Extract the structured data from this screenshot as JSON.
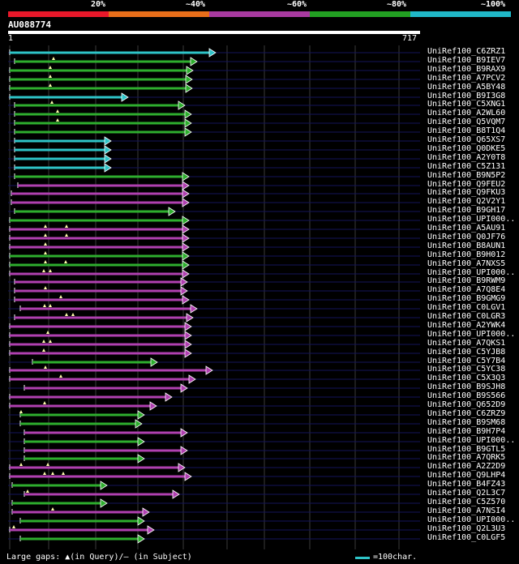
{
  "legend": {
    "labels": [
      "20%",
      "~40%",
      "~60%",
      "~80%",
      "~100%"
    ],
    "colors": [
      "#e8182a",
      "#e86e1a",
      "#a83aa0",
      "#22a022",
      "#20b8c8"
    ]
  },
  "query": {
    "id": "AU088774",
    "start": "1",
    "end": "717"
  },
  "hits": [
    {
      "label": "UniRef100_C6ZRZ1",
      "color": "cyan",
      "start": 12,
      "end": 266,
      "gaps": []
    },
    {
      "label": "UniRef100_B9IEV7",
      "color": "green",
      "start": 18,
      "end": 243,
      "gaps": [
        66
      ]
    },
    {
      "label": "UniRef100_B9RAX9",
      "color": "green",
      "start": 12,
      "end": 238,
      "gaps": [
        62
      ]
    },
    {
      "label": "UniRef100_A7PCV2",
      "color": "green",
      "start": 12,
      "end": 237,
      "gaps": [
        62
      ]
    },
    {
      "label": "UniRef100_A5BY48",
      "color": "green",
      "start": 12,
      "end": 237,
      "gaps": [
        62
      ]
    },
    {
      "label": "UniRef100_B9I3G8",
      "color": "cyan",
      "start": 12,
      "end": 158,
      "gaps": []
    },
    {
      "label": "UniRef100_C5XNG1",
      "color": "green",
      "start": 18,
      "end": 228,
      "gaps": [
        64
      ]
    },
    {
      "label": "UniRef100_A2WL60",
      "color": "green",
      "start": 18,
      "end": 236,
      "gaps": [
        71
      ]
    },
    {
      "label": "UniRef100_Q5VQM7",
      "color": "green",
      "start": 18,
      "end": 236,
      "gaps": [
        71
      ]
    },
    {
      "label": "UniRef100_B8T1Q4",
      "color": "green",
      "start": 18,
      "end": 236,
      "gaps": []
    },
    {
      "label": "UniRef100_Q65XS7",
      "color": "cyan",
      "start": 18,
      "end": 137,
      "gaps": []
    },
    {
      "label": "UniRef100_Q0DKE5",
      "color": "cyan",
      "start": 18,
      "end": 137,
      "gaps": []
    },
    {
      "label": "UniRef100_A2Y0T8",
      "color": "cyan",
      "start": 18,
      "end": 137,
      "gaps": []
    },
    {
      "label": "UniRef100_C5Z131",
      "color": "cyan",
      "start": 18,
      "end": 137,
      "gaps": []
    },
    {
      "label": "UniRef100_B9N5P2",
      "color": "green",
      "start": 18,
      "end": 233,
      "gaps": []
    },
    {
      "label": "UniRef100_Q9FEU2",
      "color": "magenta",
      "start": 22,
      "end": 233,
      "gaps": []
    },
    {
      "label": "UniRef100_Q9FKU3",
      "color": "magenta",
      "start": 14,
      "end": 233,
      "gaps": []
    },
    {
      "label": "UniRef100_Q2V2Y1",
      "color": "magenta",
      "start": 14,
      "end": 233,
      "gaps": []
    },
    {
      "label": "UniRef100_B9GH17",
      "color": "green",
      "start": 18,
      "end": 216,
      "gaps": []
    },
    {
      "label": "UniRef100_UPI000..",
      "color": "green",
      "start": 12,
      "end": 233,
      "gaps": []
    },
    {
      "label": "UniRef100_A5AU91",
      "color": "magenta",
      "start": 12,
      "end": 233,
      "gaps": [
        56,
        82
      ]
    },
    {
      "label": "UniRef100_Q0JF76",
      "color": "magenta",
      "start": 12,
      "end": 233,
      "gaps": [
        56,
        82
      ]
    },
    {
      "label": "UniRef100_B8AUN1",
      "color": "magenta",
      "start": 12,
      "end": 233,
      "gaps": [
        56
      ]
    },
    {
      "label": "UniRef100_B9H012",
      "color": "green",
      "start": 12,
      "end": 233,
      "gaps": [
        56
      ]
    },
    {
      "label": "UniRef100_A7NXS5",
      "color": "green",
      "start": 12,
      "end": 233,
      "gaps": [
        56,
        81
      ]
    },
    {
      "label": "UniRef100_UPI000..",
      "color": "magenta",
      "start": 12,
      "end": 233,
      "gaps": [
        54,
        62
      ]
    },
    {
      "label": "UniRef100_B9RWM9",
      "color": "magenta",
      "start": 18,
      "end": 231,
      "gaps": []
    },
    {
      "label": "UniRef100_A7Q8E4",
      "color": "magenta",
      "start": 18,
      "end": 231,
      "gaps": [
        56
      ]
    },
    {
      "label": "UniRef100_B9GMG9",
      "color": "magenta",
      "start": 18,
      "end": 233,
      "gaps": [
        75
      ]
    },
    {
      "label": "UniRef100_C0LGV1",
      "color": "magenta",
      "start": 25,
      "end": 243,
      "gaps": [
        55,
        62
      ]
    },
    {
      "label": "UniRef100_C0LGR3",
      "color": "magenta",
      "start": 18,
      "end": 238,
      "gaps": [
        82,
        90
      ]
    },
    {
      "label": "UniRef100_A2YWK4",
      "color": "magenta",
      "start": 12,
      "end": 236,
      "gaps": []
    },
    {
      "label": "UniRef100_UPI000..",
      "color": "magenta",
      "start": 12,
      "end": 236,
      "gaps": [
        59
      ]
    },
    {
      "label": "UniRef100_A7QKS1",
      "color": "magenta",
      "start": 12,
      "end": 236,
      "gaps": [
        54,
        62
      ]
    },
    {
      "label": "UniRef100_C5YJB8",
      "color": "magenta",
      "start": 12,
      "end": 236,
      "gaps": [
        54
      ]
    },
    {
      "label": "UniRef100_C5Y7B4",
      "color": "green",
      "start": 40,
      "end": 194,
      "gaps": []
    },
    {
      "label": "UniRef100_C5YC38",
      "color": "magenta",
      "start": 12,
      "end": 262,
      "gaps": [
        56
      ]
    },
    {
      "label": "UniRef100_C5X3Q3",
      "color": "magenta",
      "start": 12,
      "end": 241,
      "gaps": [
        75
      ]
    },
    {
      "label": "UniRef100_B9SJH8",
      "color": "magenta",
      "start": 30,
      "end": 231,
      "gaps": []
    },
    {
      "label": "UniRef100_B9S566",
      "color": "magenta",
      "start": 12,
      "end": 212,
      "gaps": []
    },
    {
      "label": "UniRef100_Q652D9",
      "color": "magenta",
      "start": 12,
      "end": 193,
      "gaps": [
        55
      ]
    },
    {
      "label": "UniRef100_C6ZRZ9",
      "color": "green",
      "start": 25,
      "end": 178,
      "gaps": [
        26
      ]
    },
    {
      "label": "UniRef100_B9SM68",
      "color": "green",
      "start": 25,
      "end": 175,
      "gaps": []
    },
    {
      "label": "UniRef100_B9H7P4",
      "color": "magenta",
      "start": 30,
      "end": 231,
      "gaps": []
    },
    {
      "label": "UniRef100_UPI000..",
      "color": "green",
      "start": 30,
      "end": 178,
      "gaps": []
    },
    {
      "label": "UniRef100_B9GTL5",
      "color": "magenta",
      "start": 30,
      "end": 231,
      "gaps": []
    },
    {
      "label": "UniRef100_A7QRK5",
      "color": "green",
      "start": 30,
      "end": 178,
      "gaps": []
    },
    {
      "label": "UniRef100_A2Z2D9",
      "color": "magenta",
      "start": 12,
      "end": 228,
      "gaps": [
        26,
        59
      ]
    },
    {
      "label": "UniRef100_Q9LHP4",
      "color": "magenta",
      "start": 12,
      "end": 236,
      "gaps": [
        55,
        65,
        78
      ]
    },
    {
      "label": "UniRef100_B4FZ43",
      "color": "green",
      "start": 15,
      "end": 132,
      "gaps": []
    },
    {
      "label": "UniRef100_Q2L3C7",
      "color": "magenta",
      "start": 30,
      "end": 221,
      "gaps": [
        34
      ]
    },
    {
      "label": "UniRef100_C5Z570",
      "color": "green",
      "start": 15,
      "end": 132,
      "gaps": []
    },
    {
      "label": "UniRef100_A7NSI4",
      "color": "magenta",
      "start": 15,
      "end": 184,
      "gaps": [
        65
      ]
    },
    {
      "label": "UniRef100_UPI000..",
      "color": "green",
      "start": 25,
      "end": 178,
      "gaps": []
    },
    {
      "label": "UniRef100_Q2L3U3",
      "color": "magenta",
      "start": 12,
      "end": 190,
      "gaps": [
        17
      ]
    },
    {
      "label": "UniRef100_C0LGF5",
      "color": "green",
      "start": 25,
      "end": 178,
      "gaps": []
    }
  ],
  "footer": {
    "gaps_text": "Large gaps: ▲(in Query)/– (in Subject)",
    "scale_text": "=100char."
  },
  "palette": {
    "cyan": "#2ec4c8",
    "green": "#2eae2e",
    "magenta": "#b040b0",
    "track": "#14145a",
    "grid": "#3a3a3a"
  }
}
